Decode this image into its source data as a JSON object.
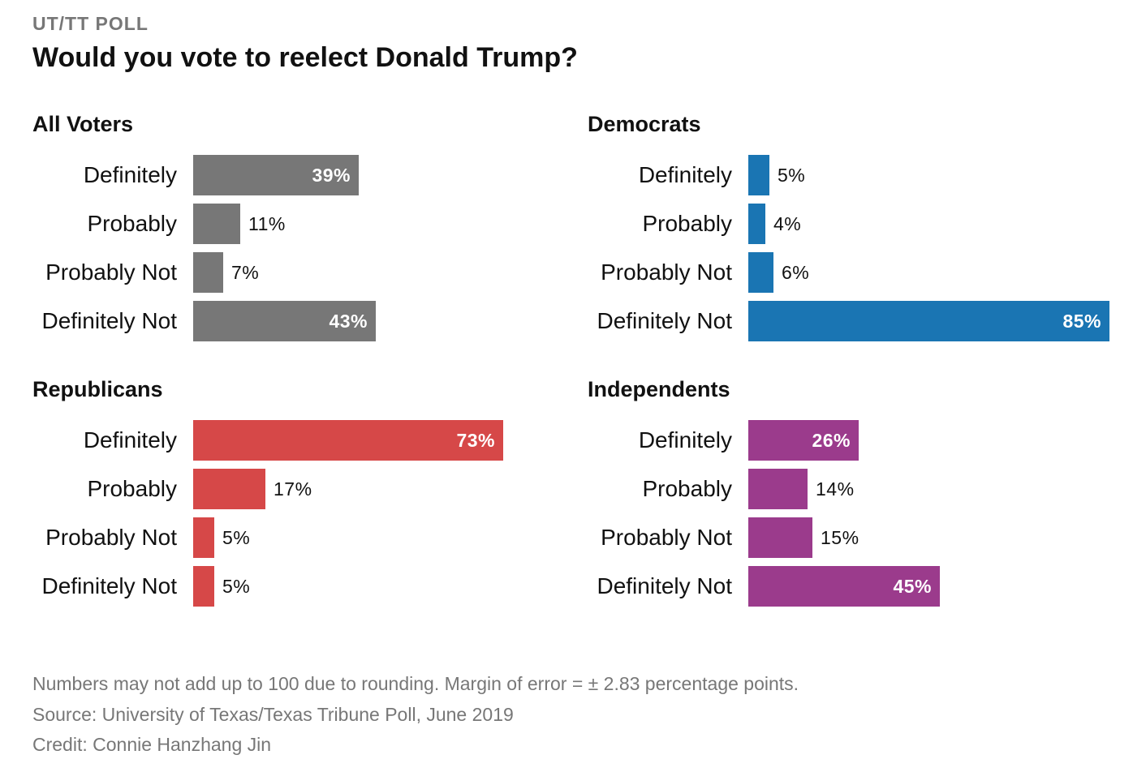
{
  "kicker": "UT/TT POLL",
  "title": "Would you vote to reelect Donald Trump?",
  "notes": {
    "rounding": "Numbers may not add up to 100 due to rounding. Margin of error = ± 2.83 percentage points.",
    "source": "Source: University of Texas/Texas Tribune Poll, June 2019",
    "credit": "Credit: Connie Hanzhang Jin"
  },
  "colors": {
    "all_voters": "#777777",
    "democrats": "#1a75b3",
    "republicans": "#d64848",
    "independents": "#9b3b8c"
  },
  "chart_data": [
    {
      "type": "bar",
      "orientation": "horizontal",
      "title": "All Voters",
      "color": "#777777",
      "categories": [
        "Definitely",
        "Probably",
        "Probably Not",
        "Definitely Not"
      ],
      "values": [
        39,
        11,
        7,
        43
      ],
      "value_labels": [
        "39%",
        "11%",
        "7%",
        "43%"
      ],
      "xlim": [
        0,
        85
      ]
    },
    {
      "type": "bar",
      "orientation": "horizontal",
      "title": "Democrats",
      "color": "#1a75b3",
      "categories": [
        "Definitely",
        "Probably",
        "Probably Not",
        "Definitely Not"
      ],
      "values": [
        5,
        4,
        6,
        85
      ],
      "value_labels": [
        "5%",
        "4%",
        "6%",
        "85%"
      ],
      "xlim": [
        0,
        85
      ]
    },
    {
      "type": "bar",
      "orientation": "horizontal",
      "title": "Republicans",
      "color": "#d64848",
      "categories": [
        "Definitely",
        "Probably",
        "Probably Not",
        "Definitely Not"
      ],
      "values": [
        73,
        17,
        5,
        5
      ],
      "value_labels": [
        "73%",
        "17%",
        "5%",
        "5%"
      ],
      "xlim": [
        0,
        85
      ]
    },
    {
      "type": "bar",
      "orientation": "horizontal",
      "title": "Independents",
      "color": "#9b3b8c",
      "categories": [
        "Definitely",
        "Probably",
        "Probably Not",
        "Definitely Not"
      ],
      "values": [
        26,
        14,
        15,
        45
      ],
      "value_labels": [
        "26%",
        "14%",
        "15%",
        "45%"
      ],
      "xlim": [
        0,
        85
      ]
    }
  ]
}
